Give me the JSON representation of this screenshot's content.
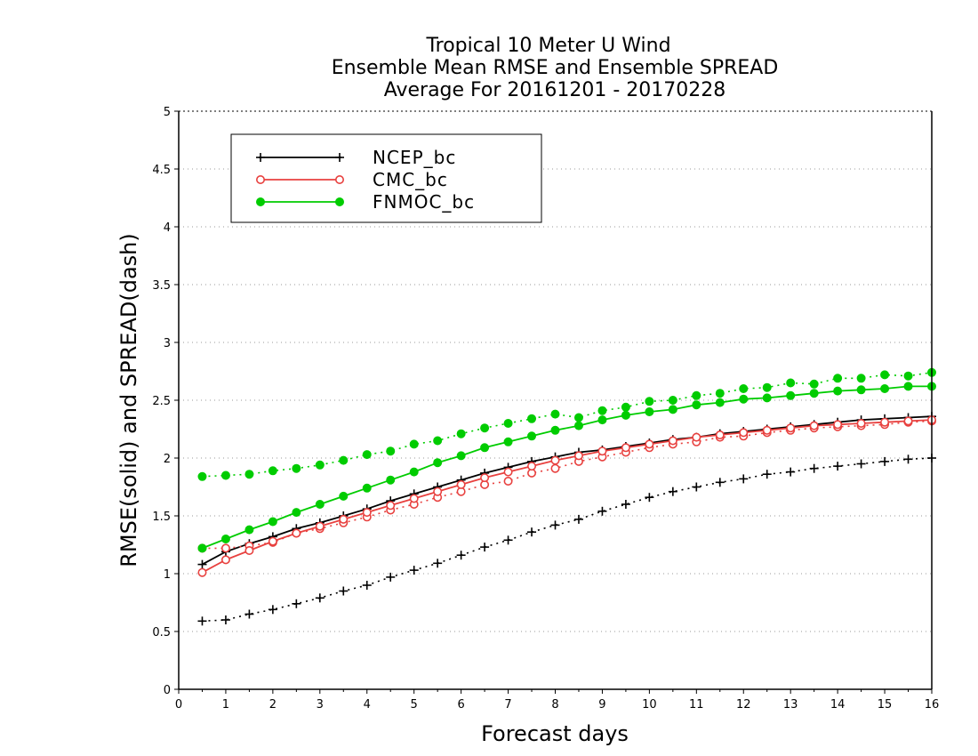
{
  "chart_data": {
    "type": "line",
    "title": [
      "Tropical 10 Meter U Wind",
      "Ensemble Mean RMSE and Ensemble SPREAD",
      "Average For 20161201 - 20170228"
    ],
    "xlabel": "Forecast days",
    "ylabel": "RMSE(solid) and SPREAD(dash)",
    "xlim": [
      0,
      16
    ],
    "ylim": [
      0,
      5
    ],
    "xticks": [
      "0",
      "1",
      "2",
      "3",
      "4",
      "5",
      "6",
      "7",
      "8",
      "9",
      "10",
      "11",
      "12",
      "13",
      "14",
      "15",
      "16"
    ],
    "yticks": [
      "0",
      "0.5",
      "1",
      "1.5",
      "2",
      "2.5",
      "3",
      "3.5",
      "4",
      "4.5",
      "5"
    ],
    "grid": true,
    "legend_position": "top-left",
    "x": [
      0.5,
      1,
      1.5,
      2,
      2.5,
      3,
      3.5,
      4,
      4.5,
      5,
      5.5,
      6,
      6.5,
      7,
      7.5,
      8,
      8.5,
      9,
      9.5,
      10,
      10.5,
      11,
      11.5,
      12,
      12.5,
      13,
      13.5,
      14,
      14.5,
      15,
      15.5,
      16
    ],
    "series": [
      {
        "name": "NCEP_bc",
        "color": "#000000",
        "marker": "plus",
        "rmse": [
          1.08,
          1.19,
          1.26,
          1.32,
          1.39,
          1.44,
          1.5,
          1.56,
          1.63,
          1.69,
          1.75,
          1.81,
          1.87,
          1.92,
          1.97,
          2.01,
          2.05,
          2.07,
          2.1,
          2.13,
          2.16,
          2.18,
          2.21,
          2.23,
          2.25,
          2.27,
          2.29,
          2.31,
          2.33,
          2.34,
          2.35,
          2.36
        ],
        "spread": [
          0.59,
          0.6,
          0.65,
          0.69,
          0.74,
          0.79,
          0.85,
          0.9,
          0.97,
          1.03,
          1.09,
          1.16,
          1.23,
          1.29,
          1.36,
          1.42,
          1.47,
          1.54,
          1.6,
          1.66,
          1.71,
          1.75,
          1.79,
          1.82,
          1.86,
          1.88,
          1.91,
          1.93,
          1.95,
          1.97,
          1.99,
          2.0
        ]
      },
      {
        "name": "CMC_bc",
        "color": "#e8413f",
        "marker": "open-circle",
        "rmse": [
          1.01,
          1.12,
          1.2,
          1.28,
          1.35,
          1.41,
          1.47,
          1.53,
          1.59,
          1.65,
          1.71,
          1.77,
          1.83,
          1.88,
          1.93,
          1.98,
          2.02,
          2.06,
          2.09,
          2.12,
          2.15,
          2.18,
          2.2,
          2.22,
          2.24,
          2.26,
          2.28,
          2.29,
          2.3,
          2.31,
          2.32,
          2.33
        ],
        "spread": [
          1.22,
          1.22,
          1.24,
          1.27,
          1.35,
          1.39,
          1.44,
          1.49,
          1.55,
          1.6,
          1.66,
          1.71,
          1.77,
          1.8,
          1.87,
          1.91,
          1.97,
          2.01,
          2.05,
          2.09,
          2.12,
          2.14,
          2.18,
          2.19,
          2.22,
          2.24,
          2.26,
          2.27,
          2.28,
          2.29,
          2.31,
          2.32
        ]
      },
      {
        "name": "FNMOC_bc",
        "color": "#00cc00",
        "marker": "filled-circle",
        "rmse": [
          1.22,
          1.3,
          1.38,
          1.45,
          1.53,
          1.6,
          1.67,
          1.74,
          1.81,
          1.88,
          1.96,
          2.02,
          2.09,
          2.14,
          2.19,
          2.24,
          2.28,
          2.33,
          2.37,
          2.4,
          2.42,
          2.46,
          2.48,
          2.51,
          2.52,
          2.54,
          2.56,
          2.58,
          2.59,
          2.6,
          2.62,
          2.62
        ],
        "spread": [
          1.84,
          1.85,
          1.86,
          1.89,
          1.91,
          1.94,
          1.98,
          2.03,
          2.06,
          2.12,
          2.15,
          2.21,
          2.26,
          2.3,
          2.34,
          2.38,
          2.35,
          2.41,
          2.44,
          2.49,
          2.5,
          2.54,
          2.56,
          2.6,
          2.61,
          2.65,
          2.64,
          2.69,
          2.69,
          2.72,
          2.71,
          2.74
        ]
      }
    ]
  }
}
